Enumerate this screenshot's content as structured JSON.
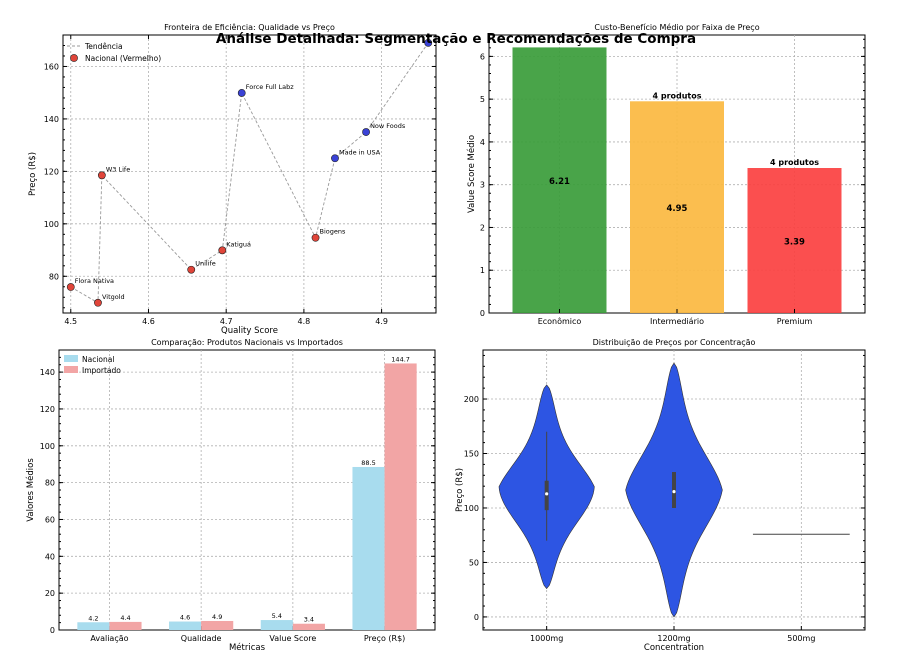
{
  "suptitle": "Análise Detalhada: Segmentação e Recomendações de Compra",
  "chart_data": [
    {
      "type": "scatter",
      "title": "Fronteira de Eficiência: Qualidade vs Preço",
      "xlabel": "Quality Score",
      "ylabel": "Preço (R$)",
      "xlim": [
        4.49,
        4.97
      ],
      "ylim": [
        66,
        172
      ],
      "xticks": [
        4.5,
        4.6,
        4.7,
        4.8,
        4.9
      ],
      "yticks": [
        80,
        100,
        120,
        140,
        160
      ],
      "legend": [
        "Tendência",
        "Nacional (Vermelho)"
      ],
      "legend_position": "top-left",
      "grid": true,
      "colors": {
        "nacional": "#e0453a",
        "importado": "#3a42d6",
        "trend": "#999999"
      },
      "points": [
        {
          "label": "Flora Nativa",
          "x": 4.5,
          "y": 75.9,
          "group": "nacional"
        },
        {
          "label": "Vitgold",
          "x": 4.535,
          "y": 69.9,
          "group": "nacional"
        },
        {
          "label": "W3 Life",
          "x": 4.54,
          "y": 118.5,
          "group": "nacional"
        },
        {
          "label": "Unilife",
          "x": 4.655,
          "y": 82.5,
          "group": "nacional"
        },
        {
          "label": "Katiguá",
          "x": 4.695,
          "y": 89.9,
          "group": "nacional"
        },
        {
          "label": "Force Full Labz",
          "x": 4.72,
          "y": 149.9,
          "group": "importado"
        },
        {
          "label": "Biogens",
          "x": 4.815,
          "y": 94.7,
          "group": "nacional"
        },
        {
          "label": "Made in USA",
          "x": 4.84,
          "y": 125.0,
          "group": "importado"
        },
        {
          "label": "Now Foods",
          "x": 4.88,
          "y": 135.0,
          "group": "importado"
        },
        {
          "label": "",
          "x": 4.96,
          "y": 169.0,
          "group": "importado"
        }
      ]
    },
    {
      "type": "bar",
      "title": "Custo-Benefício Médio por Faixa de Preço",
      "xlabel": "",
      "ylabel": "Value Score Médio",
      "ylim": [
        0,
        6.5
      ],
      "yticks": [
        0,
        1,
        2,
        3,
        4,
        5,
        6
      ],
      "categories": [
        "Econômico",
        "Intermediário",
        "Premium"
      ],
      "values": [
        6.21,
        4.95,
        3.39
      ],
      "value_labels": [
        "6.21",
        "4.95",
        "3.39"
      ],
      "count_labels": [
        "",
        "4 produtos",
        "4 produtos"
      ],
      "colors": [
        "#3a9c3a",
        "#fbb940",
        "#fb4040"
      ],
      "grid": true
    },
    {
      "type": "bar",
      "title": "Comparação: Produtos Nacionais vs Importados",
      "xlabel": "Métricas",
      "ylabel": "Valores Médios",
      "ylim": [
        0,
        152
      ],
      "yticks": [
        0,
        20,
        40,
        60,
        80,
        100,
        120,
        140
      ],
      "categories": [
        "Avaliação",
        "Qualidade",
        "Value Score",
        "Preço (R$)"
      ],
      "series": [
        {
          "name": "Nacional",
          "values": [
            4.2,
            4.6,
            5.4,
            88.5
          ],
          "labels": [
            "4.2",
            "4.6",
            "5.4",
            "88.5"
          ],
          "color": "#a8dcee"
        },
        {
          "name": "Importado",
          "values": [
            4.4,
            4.9,
            3.4,
            144.7
          ],
          "labels": [
            "4.4",
            "4.9",
            "3.4",
            "144.7"
          ],
          "color": "#f2a5a5"
        }
      ],
      "legend_position": "top-left",
      "grid": true
    },
    {
      "type": "violin",
      "title": "Distribuição de Preços por Concentração",
      "xlabel": "Concentration",
      "ylabel": "Preço (R$)",
      "ylim": [
        -12,
        245
      ],
      "yticks": [
        0,
        50,
        100,
        150,
        200
      ],
      "categories": [
        "1000mg",
        "1200mg",
        "500mg"
      ],
      "color": "#2d55e3",
      "grid": true,
      "violins": [
        {
          "min": 26,
          "max": 213,
          "q1": 98,
          "median": 113,
          "q3": 125,
          "whisker_low": 70,
          "whisker_high": 170
        },
        {
          "min": 0,
          "max": 233,
          "q1": 100,
          "median": 115,
          "q3": 133,
          "whisker_low": 100,
          "whisker_high": 133
        },
        {
          "single": 75.9
        }
      ]
    }
  ]
}
